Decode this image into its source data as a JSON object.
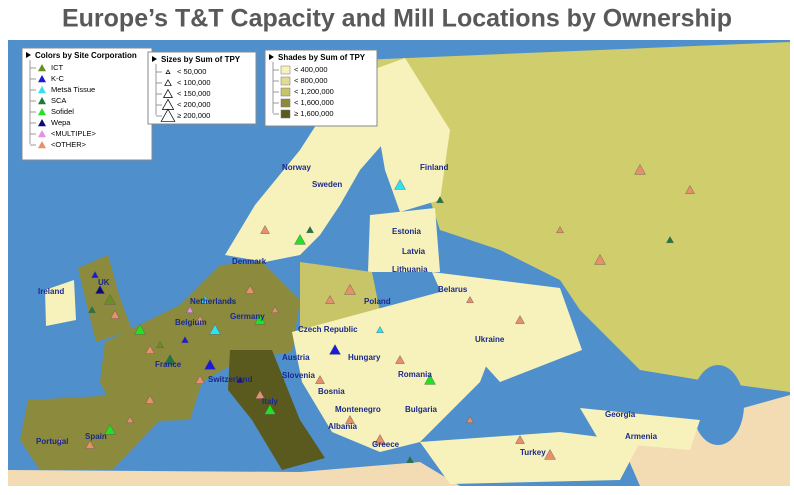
{
  "title": "Europe’s T&T Capacity and Mill Locations by Ownership",
  "legends": [
    {
      "title": "Colors by Site Corporation",
      "items": [
        {
          "label": "ICT",
          "color": "#6b8e23"
        },
        {
          "label": "K-C",
          "color": "#1a1adc"
        },
        {
          "label": "Metsä Tissue",
          "color": "#33e0f0"
        },
        {
          "label": "SCA",
          "color": "#1e7a3c"
        },
        {
          "label": "Sofidel",
          "color": "#22e022"
        },
        {
          "label": "Wepa",
          "color": "#0a0a7a"
        },
        {
          "label": "<MULTIPLE>",
          "color": "#e890e0"
        },
        {
          "label": "<OTHER>",
          "color": "#e8906a"
        }
      ]
    },
    {
      "title": "Sizes by Sum of TPY",
      "items": [
        {
          "label": "< 50,000"
        },
        {
          "label": "< 100,000"
        },
        {
          "label": "< 150,000"
        },
        {
          "label": "< 200,000"
        },
        {
          "label": "≥ 200,000"
        }
      ]
    },
    {
      "title": "Shades by Sum of TPY",
      "items": [
        {
          "label": "< 400,000",
          "color": "#f7f2bc"
        },
        {
          "label": "< 800,000",
          "color": "#e0dc90"
        },
        {
          "label": "< 1,200,000",
          "color": "#c8c468"
        },
        {
          "label": "< 1,600,000",
          "color": "#8c8a3c"
        },
        {
          "label": "≥ 1,600,000",
          "color": "#5a5a1e"
        }
      ]
    }
  ],
  "countries": [
    "Finland",
    "Norway",
    "Sweden",
    "Estonia",
    "Latvia",
    "Denmark",
    "Lithuania",
    "UK",
    "Ireland",
    "Belarus",
    "Poland",
    "Netherlands",
    "Belgium",
    "Germany",
    "Czech Republic",
    "Ukraine",
    "France",
    "Switzerland",
    "Austria",
    "Hungary",
    "Slovenia",
    "Romania",
    "Bosnia",
    "Italy",
    "Montenegro",
    "Bulgaria",
    "Georgia",
    "Albania",
    "Armenia",
    "Greece",
    "Turkey",
    "Portugal",
    "Spain"
  ]
}
